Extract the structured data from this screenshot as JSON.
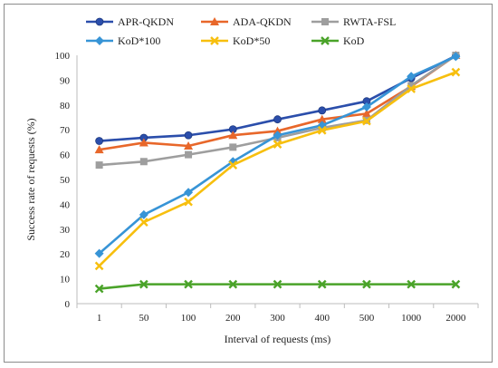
{
  "chart_data": {
    "type": "line",
    "categories": [
      "1",
      "50",
      "100",
      "200",
      "300",
      "400",
      "500",
      "1000",
      "2000"
    ],
    "xlabel": "Interval of requests (ms)",
    "ylabel": "Success rate of requests (%)",
    "ylim": [
      0,
      100
    ],
    "yticks": [
      0,
      10,
      20,
      30,
      40,
      50,
      60,
      70,
      80,
      90,
      100
    ],
    "grid": false,
    "legend_position": "top",
    "series": [
      {
        "name": "APR-QKDN",
        "color": "#2b4eab",
        "marker": "circle",
        "values": [
          65.5,
          66.8,
          67.8,
          70.2,
          74.2,
          77.8,
          81.5,
          90.8,
          99.8
        ]
      },
      {
        "name": "ADA-QKDN",
        "color": "#e8672a",
        "marker": "triangle",
        "values": [
          62,
          64.8,
          63.5,
          67.8,
          69.5,
          74.2,
          76.5,
          87.5,
          100
        ]
      },
      {
        "name": "RWTA-FSL",
        "color": "#9e9e9e",
        "marker": "square",
        "values": [
          55.8,
          57.2,
          60,
          63,
          66.8,
          70.8,
          73.8,
          87.8,
          100
        ]
      },
      {
        "name": "KoD*100",
        "color": "#3794d6",
        "marker": "diamond",
        "values": [
          20.2,
          35.8,
          44.8,
          57.2,
          67.8,
          71.8,
          79.2,
          91.5,
          99.5
        ]
      },
      {
        "name": "KoD*50",
        "color": "#f7bf0e",
        "marker": "x",
        "values": [
          15.2,
          32.8,
          41,
          55.8,
          64.2,
          69.8,
          73.5,
          86.5,
          93.2
        ]
      },
      {
        "name": "KoD",
        "color": "#4aa329",
        "marker": "x",
        "values": [
          6,
          7.8,
          7.8,
          7.8,
          7.8,
          7.8,
          7.8,
          7.8,
          7.8
        ]
      }
    ]
  }
}
